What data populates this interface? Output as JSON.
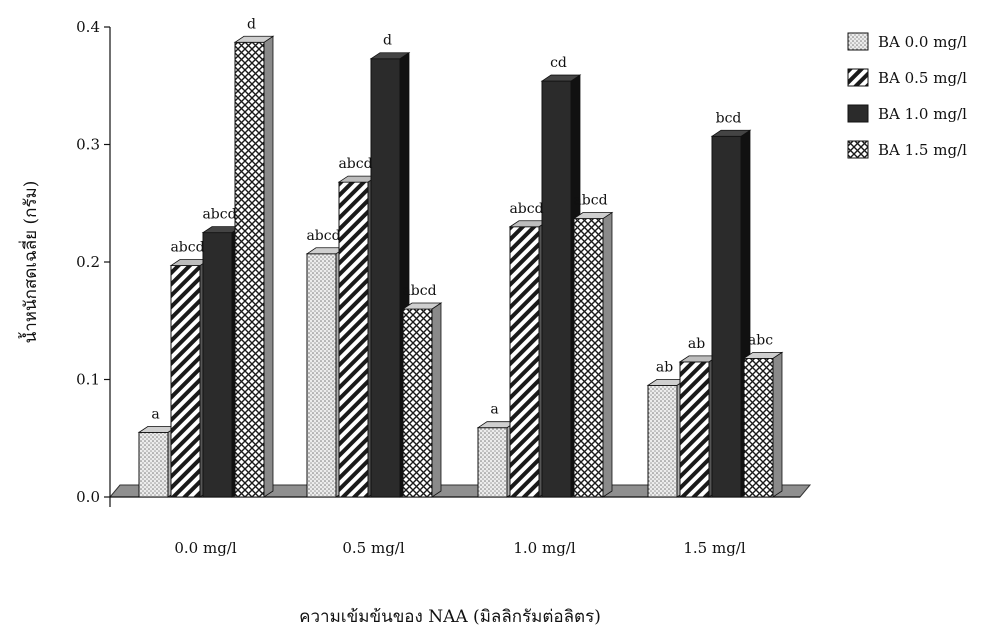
{
  "chart_data": {
    "type": "bar",
    "title": "",
    "xlabel": "ความเข้มข้นของ NAA (มิลลิกรัมต่อลิตร)",
    "ylabel": "น้ำหนักสดเฉลี่ย (กรัม)",
    "ylim": [
      0,
      0.4
    ],
    "yticks": [
      "0.0",
      "0.1",
      "0.2",
      "0.3",
      "0.4"
    ],
    "categories": [
      "0.0 mg/l",
      "0.5 mg/l",
      "1.0 mg/l",
      "1.5 mg/l"
    ],
    "legend_position": "top-right",
    "grid": false,
    "series": [
      {
        "name": "BA 0.0 mg/l",
        "pattern": "dots",
        "color": "#e6e6e6",
        "values": [
          0.055,
          0.207,
          0.059,
          0.095
        ],
        "labels": [
          "a",
          "abcd",
          "a",
          "ab"
        ]
      },
      {
        "name": "BA 0.5 mg/l",
        "pattern": "diagonal",
        "color": "#ffffff",
        "values": [
          0.197,
          0.268,
          0.23,
          0.115
        ],
        "labels": [
          "abcd",
          "abcd",
          "abcd",
          "ab"
        ]
      },
      {
        "name": "BA 1.0 mg/l",
        "pattern": "solid",
        "color": "#2b2b2b",
        "values": [
          0.225,
          0.373,
          0.354,
          0.307
        ],
        "labels": [
          "abcd",
          "d",
          "cd",
          "bcd"
        ]
      },
      {
        "name": "BA 1.5 mg/l",
        "pattern": "crosshatch",
        "color": "#ffffff",
        "values": [
          0.387,
          0.16,
          0.237,
          0.118
        ],
        "labels": [
          "d",
          "abcd",
          "abcd",
          "abc"
        ]
      }
    ]
  }
}
